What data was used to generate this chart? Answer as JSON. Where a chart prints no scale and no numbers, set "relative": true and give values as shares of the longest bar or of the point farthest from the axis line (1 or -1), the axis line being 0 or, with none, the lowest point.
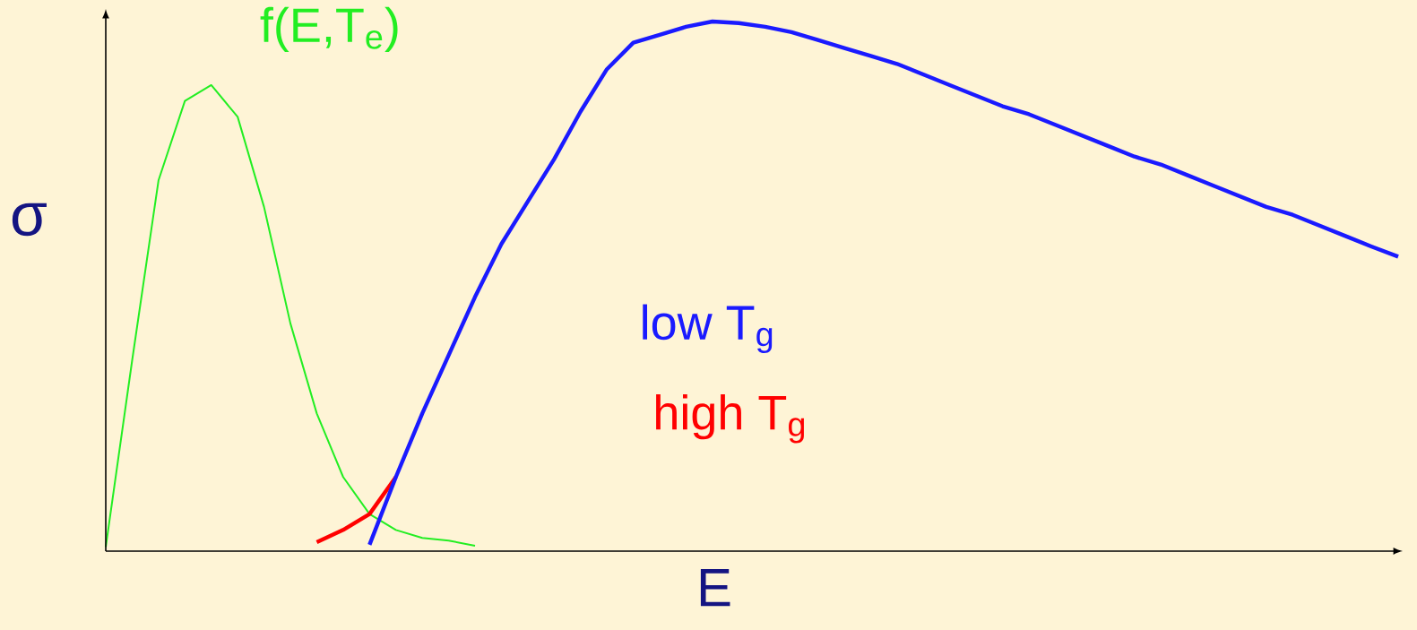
{
  "chart_data": {
    "type": "line",
    "relative": true,
    "xlabel": "E",
    "ylabel": "σ",
    "marker": "none",
    "categories": [
      null,
      null,
      null,
      null,
      null,
      null,
      null,
      null,
      null,
      null,
      null,
      null,
      null,
      null,
      null,
      null,
      null,
      null,
      null,
      null,
      null,
      null,
      null,
      null,
      null,
      null,
      null,
      null,
      null,
      null,
      null,
      null,
      null,
      null,
      null,
      null,
      null,
      null,
      null,
      null,
      null,
      null,
      null,
      null,
      null,
      null,
      null,
      null,
      null,
      null
    ],
    "series": [
      {
        "name": "f(E,T$_{e}$)",
        "color": "#22ee22",
        "values": [
          0.008,
          0.36,
          0.7,
          0.85,
          0.88,
          0.82,
          0.65,
          0.43,
          0.26,
          0.14,
          0.07,
          0.04,
          0.025,
          0.02,
          0.01,
          null,
          null,
          null,
          null,
          null,
          null,
          null,
          null,
          null,
          null,
          null,
          null,
          null,
          null,
          null,
          null,
          null,
          null,
          null,
          null,
          null,
          null,
          null,
          null,
          null,
          null,
          null,
          null,
          null,
          null,
          null,
          null,
          null,
          null,
          null
        ]
      },
      {
        "name": "high T$_{g}$",
        "color": "#ff0000",
        "values": [
          null,
          null,
          null,
          null,
          null,
          null,
          null,
          null,
          0.017,
          0.04,
          0.07,
          0.14,
          null,
          null,
          null,
          null,
          null,
          null,
          null,
          null,
          null,
          null,
          null,
          null,
          null,
          null,
          null,
          null,
          null,
          null,
          null,
          null,
          null,
          null,
          null,
          null,
          null,
          null,
          null,
          null,
          null,
          null,
          null,
          null,
          null,
          null,
          null,
          null,
          null,
          null
        ]
      },
      {
        "name": "low T$_{g}$",
        "color": "#1a1aff",
        "values": [
          null,
          null,
          null,
          null,
          null,
          null,
          null,
          null,
          null,
          null,
          0.012,
          0.14,
          0.26,
          0.37,
          0.48,
          0.58,
          0.66,
          0.74,
          0.83,
          0.91,
          0.96,
          0.975,
          0.99,
          1.0,
          0.997,
          0.99,
          0.98,
          0.965,
          0.95,
          0.935,
          0.92,
          0.9,
          0.88,
          0.86,
          0.84,
          0.825,
          0.805,
          0.785,
          0.765,
          0.745,
          0.73,
          0.71,
          0.69,
          0.67,
          0.65,
          0.635,
          0.615,
          0.595,
          0.575,
          0.556
        ]
      }
    ]
  }
}
